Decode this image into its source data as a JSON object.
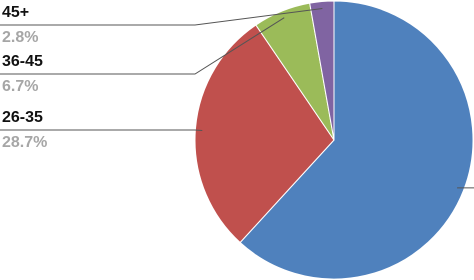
{
  "chart_data": {
    "type": "pie",
    "categories": [
      null,
      "26-35",
      "36-45",
      "45+"
    ],
    "values": [
      61.8,
      28.7,
      6.7,
      2.8
    ],
    "value_labels": [
      null,
      "28.7%",
      "6.7%",
      "2.8%"
    ],
    "colors": [
      "#4f81bd",
      "#c0504d",
      "#9bbb59",
      "#8064a2"
    ]
  }
}
